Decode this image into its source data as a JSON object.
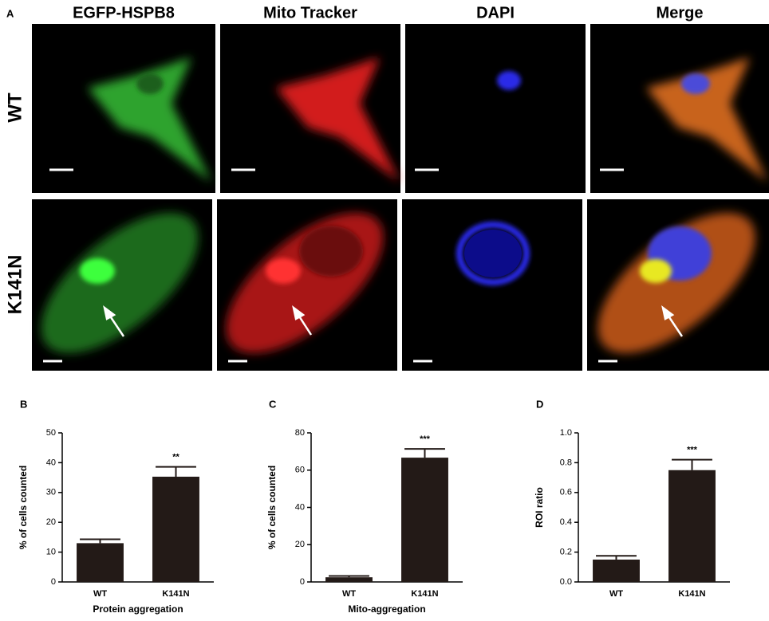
{
  "panel_a": {
    "label": "A",
    "columns": [
      "EGFP-HSPB8",
      "Mito Tracker",
      "DAPI",
      "Merge"
    ],
    "rows": [
      "WT",
      "K141N"
    ]
  },
  "chart_data": [
    {
      "type": "bar",
      "panel_label": "B",
      "categories": [
        "WT",
        "K141N"
      ],
      "values": [
        13,
        35.3
      ],
      "errors": [
        1.3,
        3.3
      ],
      "annotation": "**",
      "color": "#231a17",
      "ylim": [
        0,
        50
      ],
      "yticks": [
        0,
        10,
        20,
        30,
        40,
        50
      ],
      "ylabel": "% of cells counted",
      "xlabel": "Protein aggregation"
    },
    {
      "type": "bar",
      "panel_label": "C",
      "categories": [
        "WT",
        "K141N"
      ],
      "values": [
        2.5,
        66.7
      ],
      "errors": [
        0.7,
        4.7
      ],
      "annotation": "***",
      "color": "#231a17",
      "ylim": [
        0,
        80
      ],
      "yticks": [
        0,
        20,
        40,
        60,
        80
      ],
      "ylabel": "% of cells counted",
      "xlabel": "Mito-aggregation"
    },
    {
      "type": "bar",
      "panel_label": "D",
      "categories": [
        "WT",
        "K141N"
      ],
      "values": [
        0.15,
        0.75
      ],
      "errors": [
        0.025,
        0.07
      ],
      "annotation": "***",
      "color": "#231a17",
      "ylim": [
        0,
        1
      ],
      "yticks": [
        {
          "value": 0,
          "label": "0.0"
        },
        0.2,
        0.4,
        0.6,
        0.8,
        {
          "value": 1,
          "label": "1.0"
        }
      ],
      "ylabel": "ROI ratio"
    }
  ]
}
